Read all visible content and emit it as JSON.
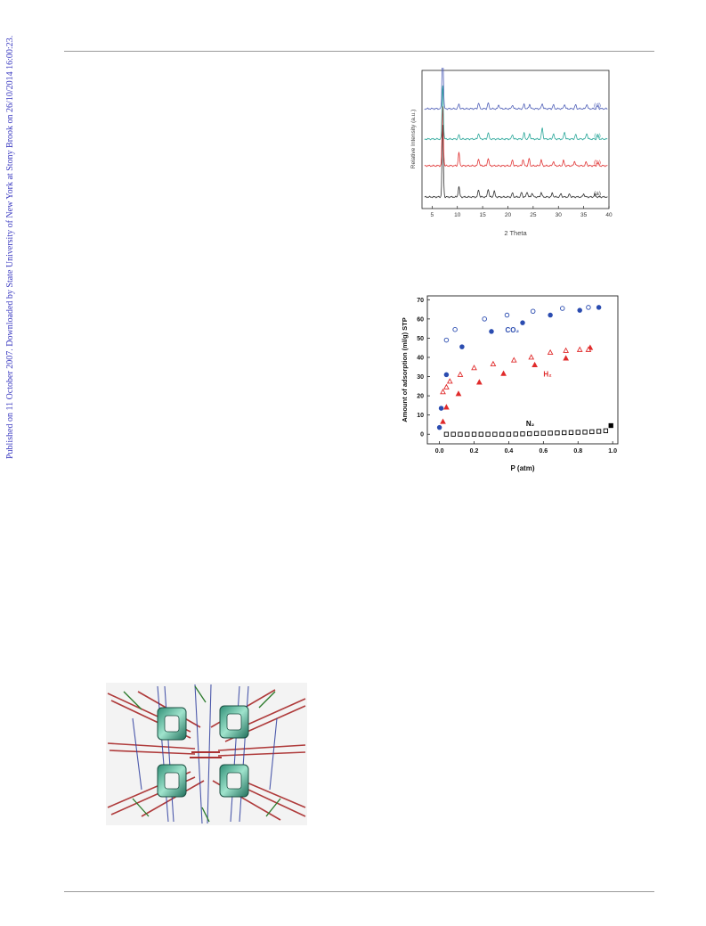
{
  "side_note": "Published on 11 October 2007. Downloaded by State University of New York at Stony Brook on 26/10/2014 16:00:23.",
  "colors": {
    "link_blue": "#3a3ac0",
    "co2": "#2b4cb0",
    "h2": "#e02b2b",
    "n2": "#000000"
  },
  "chart_data": [
    {
      "type": "line",
      "title": "",
      "xlabel": "2 Theta",
      "ylabel": "Relative Intensity (a.u.)",
      "xlim": [
        3,
        40
      ],
      "x_ticks": [
        "5",
        "10",
        "15",
        "20",
        "25",
        "30",
        "35",
        "40"
      ],
      "x_tick_values": [
        5,
        10,
        15,
        20,
        25,
        30,
        35,
        40
      ],
      "series": [
        {
          "name": "(a)",
          "color": "#333333",
          "main_peak": 7.1,
          "peaks": [
            [
              7.1,
              1.0
            ],
            [
              10.3,
              0.32
            ],
            [
              14.2,
              0.22
            ],
            [
              16.1,
              0.25
            ],
            [
              17.3,
              0.18
            ],
            [
              20.9,
              0.12
            ],
            [
              22.7,
              0.14
            ],
            [
              23.8,
              0.16
            ],
            [
              24.8,
              0.12
            ],
            [
              26.6,
              0.14
            ],
            [
              28.8,
              0.12
            ],
            [
              30.5,
              0.1
            ],
            [
              32.2,
              0.09
            ],
            [
              35.0,
              0.1
            ],
            [
              37.2,
              0.08
            ]
          ]
        },
        {
          "name": "(b)",
          "color": "#e03535",
          "main_peak": 7.1,
          "peaks": [
            [
              7.1,
              1.0
            ],
            [
              10.3,
              0.4
            ],
            [
              14.2,
              0.22
            ],
            [
              16.1,
              0.24
            ],
            [
              20.9,
              0.18
            ],
            [
              23.0,
              0.2
            ],
            [
              24.2,
              0.22
            ],
            [
              26.6,
              0.18
            ],
            [
              29.0,
              0.14
            ],
            [
              31.0,
              0.16
            ],
            [
              33.2,
              0.14
            ],
            [
              35.5,
              0.12
            ],
            [
              37.8,
              0.1
            ]
          ]
        },
        {
          "name": "(c)",
          "color": "#2aa79a",
          "main_peak": 7.1,
          "peaks": [
            [
              7.1,
              0.75
            ],
            [
              10.3,
              0.12
            ],
            [
              14.2,
              0.18
            ],
            [
              16.1,
              0.2
            ],
            [
              20.9,
              0.14
            ],
            [
              23.2,
              0.18
            ],
            [
              24.3,
              0.16
            ],
            [
              26.8,
              0.34
            ],
            [
              29.0,
              0.16
            ],
            [
              31.2,
              0.22
            ],
            [
              33.4,
              0.14
            ],
            [
              35.6,
              0.18
            ],
            [
              37.8,
              0.12
            ]
          ]
        },
        {
          "name": "(d)",
          "color": "#5060b8",
          "main_peak": 7.1,
          "peaks": [
            [
              7.1,
              1.1
            ],
            [
              10.3,
              0.14
            ],
            [
              14.2,
              0.18
            ],
            [
              16.1,
              0.18
            ],
            [
              18.2,
              0.12
            ],
            [
              20.9,
              0.12
            ],
            [
              23.2,
              0.14
            ],
            [
              24.3,
              0.14
            ],
            [
              26.8,
              0.16
            ],
            [
              29.0,
              0.12
            ],
            [
              31.2,
              0.14
            ],
            [
              33.4,
              0.12
            ],
            [
              35.6,
              0.14
            ],
            [
              37.8,
              0.1
            ]
          ]
        }
      ]
    },
    {
      "type": "scatter",
      "title": "",
      "xlabel": "P (atm)",
      "ylabel": "Amount of adsorption (ml/g) STP",
      "xlim": [
        -0.07,
        1.03
      ],
      "ylim": [
        -5,
        72
      ],
      "x_ticks": [
        "0.0",
        "0.2",
        "0.4",
        "0.6",
        "0.8",
        "1.0"
      ],
      "x_tick_values": [
        0.0,
        0.2,
        0.4,
        0.6,
        0.8,
        1.0
      ],
      "y_ticks": [
        "0",
        "10",
        "20",
        "30",
        "40",
        "50",
        "60",
        "70"
      ],
      "y_tick_values": [
        0,
        10,
        20,
        30,
        40,
        50,
        60,
        70
      ],
      "series_labels": [
        {
          "text": "CO₂",
          "x": 0.38,
          "y": 53,
          "color": "#2b4cb0"
        },
        {
          "text": "H₂",
          "x": 0.6,
          "y": 30,
          "color": "#e02b2b"
        },
        {
          "text": "N₂",
          "x": 0.5,
          "y": 4.2,
          "color": "#000000"
        }
      ],
      "series": [
        {
          "name": "CO₂",
          "marker": "circle-filled",
          "color": "#2b4cb0",
          "x": [
            0.0,
            0.01,
            0.04,
            0.13,
            0.3,
            0.48,
            0.64,
            0.81,
            0.92
          ],
          "y": [
            3.5,
            13.5,
            31,
            45.5,
            53.5,
            58,
            62,
            64.5,
            66
          ]
        },
        {
          "name": "CO₂",
          "marker": "circle-open",
          "color": "#2b4cb0",
          "x": [
            0.04,
            0.09,
            0.26,
            0.39,
            0.54,
            0.71,
            0.86
          ],
          "y": [
            49,
            54.5,
            60,
            62,
            64,
            65.5,
            66
          ]
        },
        {
          "name": "H₂",
          "marker": "triangle-filled",
          "color": "#e02b2b",
          "x": [
            0.02,
            0.04,
            0.11,
            0.23,
            0.37,
            0.55,
            0.73,
            0.87
          ],
          "y": [
            6.5,
            14,
            21,
            27,
            31.5,
            36,
            39.5,
            45
          ]
        },
        {
          "name": "H₂",
          "marker": "triangle-open",
          "color": "#e02b2b",
          "x": [
            0.02,
            0.04,
            0.06,
            0.12,
            0.2,
            0.31,
            0.43,
            0.53,
            0.64,
            0.73,
            0.81,
            0.86
          ],
          "y": [
            22,
            24.5,
            27.5,
            31,
            34.5,
            36.5,
            38.5,
            40,
            42.5,
            43.5,
            44,
            44
          ]
        },
        {
          "name": "N₂",
          "marker": "square-filled",
          "color": "#000000",
          "x": [
            0.99
          ],
          "y": [
            4.5
          ]
        },
        {
          "name": "N₂",
          "marker": "square-open",
          "color": "#000000",
          "x": [
            0.04,
            0.08,
            0.12,
            0.16,
            0.2,
            0.24,
            0.28,
            0.32,
            0.36,
            0.4,
            0.44,
            0.48,
            0.52,
            0.56,
            0.6,
            0.64,
            0.68,
            0.72,
            0.76,
            0.8,
            0.84,
            0.88,
            0.92,
            0.96
          ],
          "y": [
            0,
            0,
            0,
            0,
            0,
            0,
            0,
            0,
            0,
            0,
            0.1,
            0.2,
            0.3,
            0.4,
            0.5,
            0.6,
            0.7,
            0.8,
            0.9,
            1.0,
            1.1,
            1.3,
            1.5,
            1.8
          ]
        }
      ]
    }
  ]
}
